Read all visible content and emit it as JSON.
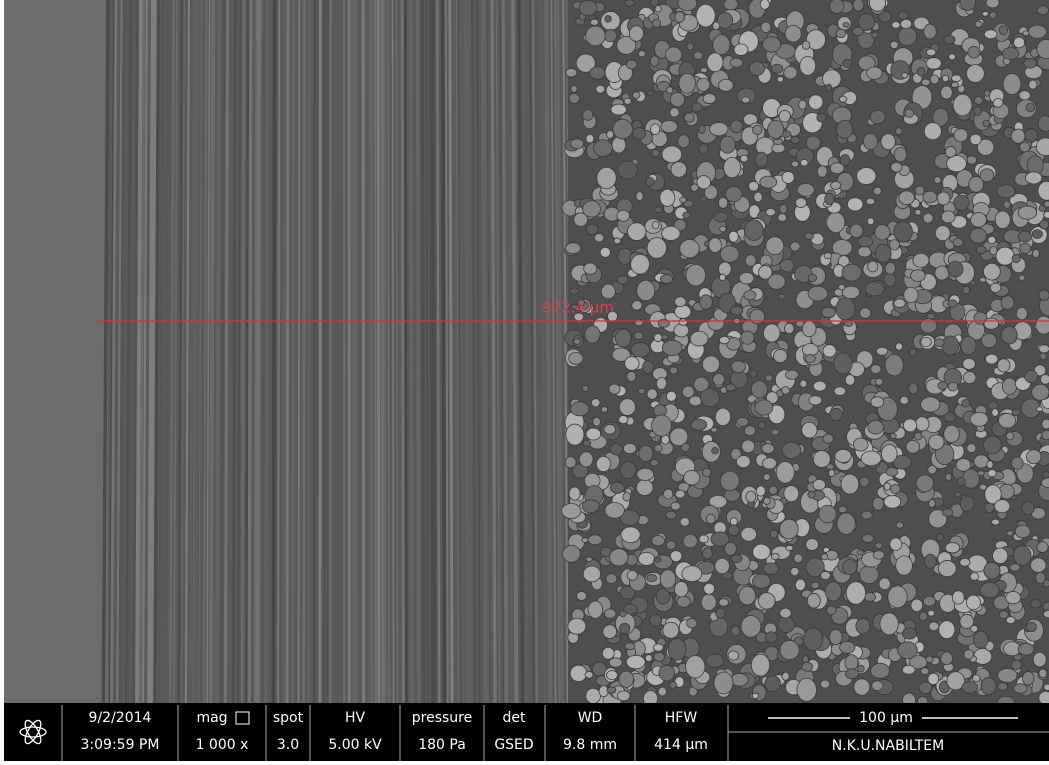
{
  "measurement": {
    "label": "972.4 µm"
  },
  "info_bar": {
    "date": "9/2/2014",
    "time": "3:09:59 PM",
    "fields": [
      {
        "label": "mag",
        "value": "1 000 x"
      },
      {
        "label": "spot",
        "value": "3.0"
      },
      {
        "label": "HV",
        "value": "5.00 kV"
      },
      {
        "label": "pressure",
        "value": "180 Pa"
      },
      {
        "label": "det",
        "value": "GSED"
      },
      {
        "label": "WD",
        "value": "9.8 mm"
      },
      {
        "label": "HFW",
        "value": "414 µm"
      }
    ],
    "scale_bar": "100 µm",
    "facility": "N.K.U.NABILTEM"
  }
}
